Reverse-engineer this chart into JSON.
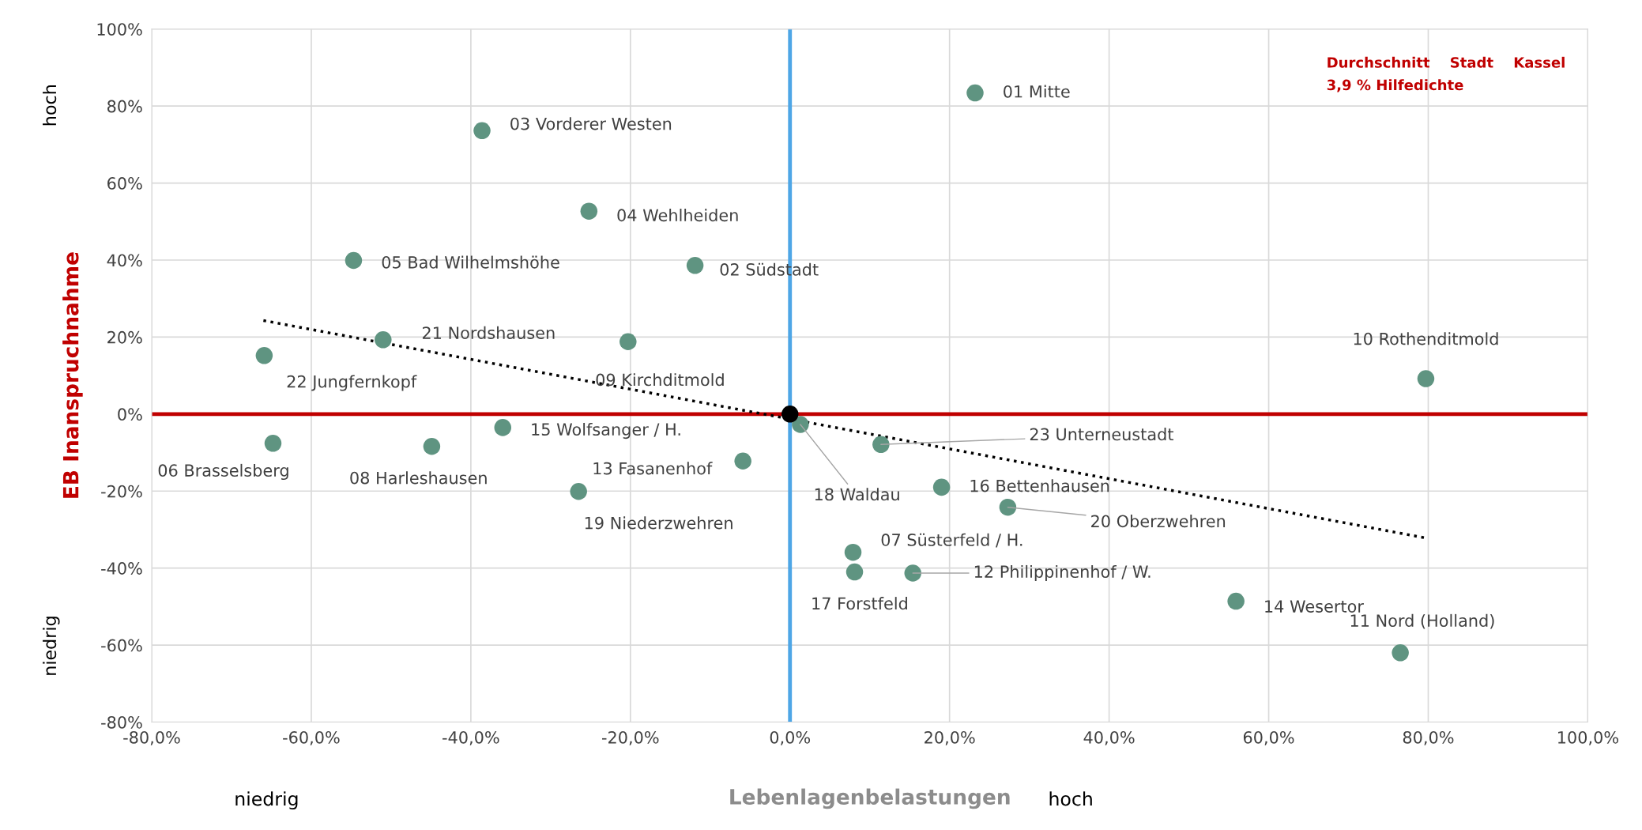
{
  "chart_data": {
    "type": "scatter",
    "xlabel": "Lebenlagenbelastungen",
    "ylabel": "EB Inanspruchnahme",
    "series": [
      {
        "type": "scatter",
        "color": "#5f9481",
        "x": [
          23.2,
          -38.6,
          -25.2,
          -54.7,
          -11.9,
          -51.0,
          -65.9,
          -20.3,
          79.7,
          -64.8,
          -44.9,
          -36.0,
          -5.9,
          -26.5,
          1.3,
          11.4,
          19.0,
          27.3,
          7.9,
          8.1,
          15.4,
          55.9,
          76.5
        ],
        "values": [
          83.4,
          73.6,
          52.7,
          39.9,
          38.6,
          19.3,
          15.2,
          18.8,
          9.2,
          -7.6,
          -8.4,
          -3.5,
          -12.2,
          -20.1,
          -2.7,
          -7.9,
          -19.0,
          -24.2,
          -35.9,
          -41.0,
          -41.3,
          -48.6,
          -62.0
        ]
      },
      {
        "type": "line",
        "color": "#000000",
        "line_style": "dotted",
        "marker": "none",
        "x": [
          -66,
          80
        ],
        "values": [
          24.3,
          -32.3
        ]
      },
      {
        "type": "scatter",
        "color": "#000000",
        "x": [
          0
        ],
        "values": [
          0
        ]
      }
    ],
    "marker": "circle",
    "xlim": [
      -80,
      100
    ],
    "ylim": [
      -80,
      100
    ],
    "xticks": [
      {
        "value": -80,
        "label": "-80,0%"
      },
      {
        "value": -60,
        "label": "-60,0%"
      },
      {
        "value": -40,
        "label": "-40,0%"
      },
      {
        "value": -20,
        "label": "-20,0%"
      },
      {
        "value": 0,
        "label": "0,0%"
      },
      {
        "value": 20,
        "label": "20,0%"
      },
      {
        "value": 40,
        "label": "40,0%"
      },
      {
        "value": 60,
        "label": "60,0%"
      },
      {
        "value": 80,
        "label": "80,0%"
      },
      {
        "value": 100,
        "label": "100,0%"
      }
    ],
    "yticks": [
      {
        "value": -80,
        "label": "-80%"
      },
      {
        "value": -60,
        "label": "-60%"
      },
      {
        "value": -40,
        "label": "-40%"
      },
      {
        "value": -20,
        "label": "-20%"
      },
      {
        "value": 0,
        "label": "0%"
      },
      {
        "value": 20,
        "label": "20%"
      },
      {
        "value": 40,
        "label": "40%"
      },
      {
        "value": 60,
        "label": "60%"
      },
      {
        "value": 80,
        "label": "80%"
      },
      {
        "value": 100,
        "label": "100%"
      }
    ],
    "grid": true,
    "ref_lines": [
      {
        "axis": "y",
        "value": 0,
        "color": "#c00000"
      },
      {
        "axis": "x",
        "value": 0,
        "color": "#4ea6e6"
      }
    ],
    "annotations": [
      {
        "text": "01 Mitte",
        "x": 23.2,
        "y": 83.4
      },
      {
        "text": "03 Vorderer Westen",
        "x": -38.6,
        "y": 73.6
      },
      {
        "text": "04 Wehlheiden",
        "x": -25.2,
        "y": 52.7
      },
      {
        "text": "05 Bad Wilhelmshöhe",
        "x": -54.7,
        "y": 39.9
      },
      {
        "text": "02 Südstadt",
        "x": -11.9,
        "y": 38.6
      },
      {
        "text": "21 Nordshausen",
        "x": -51.0,
        "y": 19.3
      },
      {
        "text": "22 Jungfernkopf",
        "x": -65.9,
        "y": 15.2
      },
      {
        "text": "09 Kirchditmold",
        "x": -20.3,
        "y": 18.8
      },
      {
        "text": "10 Rothenditmold",
        "x": 79.7,
        "y": 9.2
      },
      {
        "text": "06 Brasselsberg",
        "x": -64.8,
        "y": -7.6
      },
      {
        "text": "08 Harleshausen",
        "x": -44.9,
        "y": -8.4
      },
      {
        "text": "15 Wolfsanger / H.",
        "x": -36.0,
        "y": -3.5
      },
      {
        "text": "13 Fasanenhof",
        "x": -5.9,
        "y": -12.2
      },
      {
        "text": "19 Niederzwehren",
        "x": -26.5,
        "y": -20.1
      },
      {
        "text": "18 Waldau",
        "x": 1.3,
        "y": -2.7
      },
      {
        "text": "23 Unterneustadt",
        "x": 11.4,
        "y": -7.9
      },
      {
        "text": "16 Bettenhausen",
        "x": 19.0,
        "y": -19.0
      },
      {
        "text": "20 Oberzwehren",
        "x": 27.3,
        "y": -24.2
      },
      {
        "text": "07 Süsterfeld / H.",
        "x": 7.9,
        "y": -35.9
      },
      {
        "text": "17 Forstfeld",
        "x": 8.1,
        "y": -41.0
      },
      {
        "text": "12 Philippinenhof / W.",
        "x": 15.4,
        "y": -41.3
      },
      {
        "text": "14 Wesertor",
        "x": 55.9,
        "y": -48.6
      },
      {
        "text": "11 Nord (Holland)",
        "x": 76.5,
        "y": -62.0
      },
      "hoch",
      "niedrig",
      "niedrig",
      "hoch",
      "Durchschnitt    Stadt    Kassel\n3,9 % Hilfedichte"
    ]
  }
}
